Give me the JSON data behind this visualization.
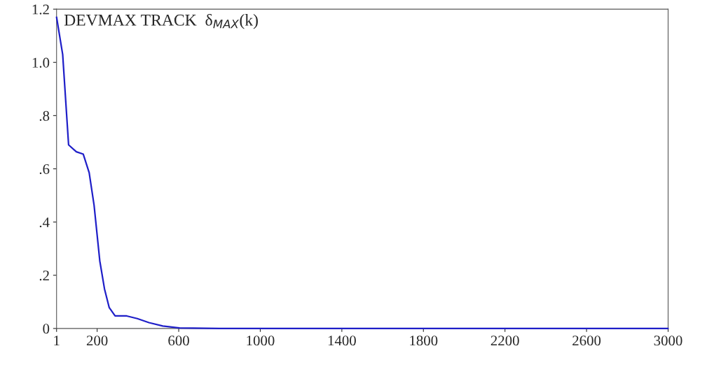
{
  "chart_data": {
    "type": "line",
    "title": "DEVMAX TRACK  δ$_{MAX}$(k)",
    "series": [
      {
        "color": "#1f1fc8",
        "x": [
          1,
          31,
          60,
          98,
          132,
          161,
          185,
          213,
          236,
          259,
          288,
          345,
          397,
          454,
          522,
          604,
          800,
          1200,
          1600,
          2000,
          2400,
          2800,
          3000
        ],
        "values": [
          1.17,
          1.03,
          0.69,
          0.664,
          0.655,
          0.585,
          0.463,
          0.254,
          0.149,
          0.079,
          0.047,
          0.047,
          0.037,
          0.022,
          0.009,
          0.002,
          0,
          0,
          0,
          0,
          0,
          0,
          0
        ]
      }
    ],
    "xlim": [
      1,
      3000
    ],
    "xticks": [
      1,
      200,
      600,
      1000,
      1400,
      1800,
      2200,
      2600,
      3000
    ],
    "ylim": [
      0,
      1.2
    ],
    "yticks": [
      0,
      {
        "value": 0.2,
        "label": ".2"
      },
      {
        "value": 0.4,
        "label": ".4"
      },
      {
        "value": 0.6,
        "label": ".6"
      },
      {
        "value": 0.8,
        "label": ".8"
      },
      {
        "value": 1.0,
        "label": "1.0"
      },
      {
        "value": 1.2,
        "label": "1.2"
      }
    ],
    "grid": false,
    "legend": false,
    "marker": "none",
    "line_style": "solid"
  }
}
